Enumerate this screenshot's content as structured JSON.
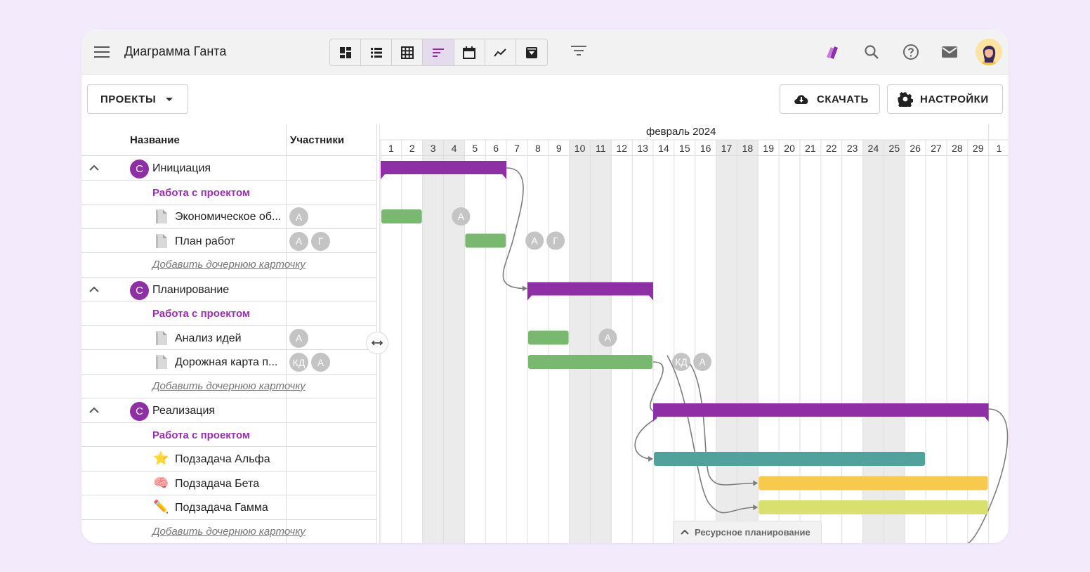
{
  "app": {
    "title": "Диаграмма Ганта"
  },
  "toolbar": {
    "views": [
      {
        "icon": "dashboard-icon",
        "active": false
      },
      {
        "icon": "list-icon",
        "active": false
      },
      {
        "icon": "table-icon",
        "active": false
      },
      {
        "icon": "gantt-icon",
        "active": true
      },
      {
        "icon": "calendar-icon",
        "active": false
      },
      {
        "icon": "chart-line-icon",
        "active": false
      },
      {
        "icon": "archive-icon",
        "active": false
      }
    ],
    "projects_label": "ПРОЕКТЫ",
    "download_label": "СКАЧАТЬ",
    "settings_label": "НАСТРОЙКИ"
  },
  "table": {
    "col_name": "Название",
    "col_members": "Участники"
  },
  "groups": [
    {
      "name": "Инициация",
      "letter": "С",
      "link": "Работа с проектом",
      "add": "Добавить дочернюю карточку",
      "tasks": [
        {
          "name": "Экономическое об...",
          "members": [
            "А"
          ]
        },
        {
          "name": "План работ",
          "members": [
            "А",
            "Г"
          ]
        }
      ]
    },
    {
      "name": "Планирование",
      "letter": "С",
      "link": "Работа с проектом",
      "add": "Добавить дочернюю карточку",
      "tasks": [
        {
          "name": "Анализ идей",
          "members": [
            "А"
          ]
        },
        {
          "name": "Дорожная карта п...",
          "members": [
            "КД",
            "А"
          ]
        }
      ]
    },
    {
      "name": "Реализация",
      "letter": "С",
      "link": "Работа с проектом",
      "add": "Добавить дочернюю карточку",
      "tasks": [
        {
          "name": "Подзадача Альфа",
          "icon": "⭐"
        },
        {
          "name": "Подзадача Бета",
          "icon": "🧠"
        },
        {
          "name": "Подзадача Гамма",
          "icon": "✏️"
        }
      ]
    }
  ],
  "timeline": {
    "month": "февраль 2024",
    "days": [
      "1",
      "2",
      "3",
      "4",
      "5",
      "6",
      "7",
      "8",
      "9",
      "10",
      "11",
      "12",
      "13",
      "14",
      "15",
      "16",
      "17",
      "18",
      "19",
      "20",
      "21",
      "22",
      "23",
      "24",
      "25",
      "26",
      "27",
      "28",
      "29",
      "1"
    ],
    "weekend_days": [
      3,
      4,
      10,
      11,
      17,
      18,
      24,
      25
    ],
    "bars": [
      {
        "row": 0,
        "start": 1,
        "end": 6,
        "kind": "group",
        "color": "#8e2fa6"
      },
      {
        "row": 2,
        "start": 1,
        "end": 2,
        "kind": "task",
        "color": "#78b86f",
        "labels": [
          "А"
        ]
      },
      {
        "row": 3,
        "start": 5,
        "end": 6,
        "kind": "task",
        "color": "#78b86f",
        "labels": [
          "А",
          "Г"
        ]
      },
      {
        "row": 5,
        "start": 8,
        "end": 13,
        "kind": "group",
        "color": "#8e2fa6"
      },
      {
        "row": 7,
        "start": 8,
        "end": 9,
        "kind": "task",
        "color": "#78b86f",
        "labels": [
          "А"
        ]
      },
      {
        "row": 8,
        "start": 8,
        "end": 13,
        "kind": "task",
        "color": "#78b86f",
        "labels": [
          "КД",
          "А"
        ]
      },
      {
        "row": 10,
        "start": 14,
        "end": 29,
        "kind": "group",
        "color": "#8e2fa6"
      },
      {
        "row": 12,
        "start": 14,
        "end": 26,
        "kind": "task",
        "color": "#4fa39a"
      },
      {
        "row": 13,
        "start": 19,
        "end": 29,
        "kind": "task",
        "color": "#f7c94d"
      },
      {
        "row": 14,
        "start": 19,
        "end": 29,
        "kind": "task",
        "color": "#d9e06e"
      }
    ]
  },
  "resource_tab": "Ресурсное планирование",
  "colors": {
    "accent": "#8e2fa6",
    "link": "#9a2fb0",
    "task_green": "#78b86f",
    "teal": "#4fa39a",
    "yellow": "#f7c94d",
    "lime": "#d9e06e",
    "weekend": "#ebebeb"
  }
}
